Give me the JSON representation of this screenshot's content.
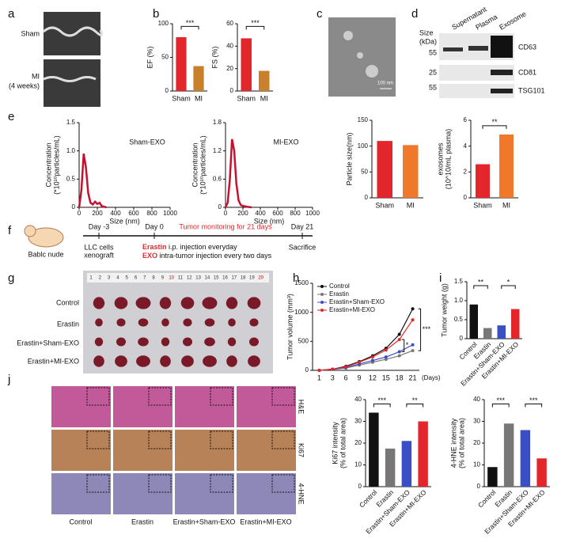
{
  "panels": [
    "a",
    "b",
    "c",
    "d",
    "e",
    "f",
    "g",
    "h",
    "i",
    "j"
  ],
  "echo": {
    "rows": [
      "Sham",
      "MI",
      "(4 weeks)"
    ]
  },
  "tem": {
    "scale": "100 nm"
  },
  "western": {
    "size_label": [
      "Size",
      "(kDa)"
    ],
    "lanes": [
      "Supernatant",
      "Plasma",
      "Exosome"
    ],
    "markers": [
      "55",
      "25",
      "55"
    ],
    "proteins": [
      "CD63",
      "CD81",
      "TSG101"
    ]
  },
  "schematic": {
    "mouse": "Bablc nude",
    "days": [
      "Day -3",
      "Day 0",
      "Day 21"
    ],
    "monitoring": "Tumor monitoring for 21 days",
    "cells": [
      "LLC cells",
      "xenograft"
    ],
    "treatments": [
      {
        "drug": "Erastin",
        "text": "i.p. injection everyday"
      },
      {
        "drug": "EXO",
        "text": "intra-tumor injection every two days"
      }
    ],
    "end": "Sacrifice"
  },
  "tumor_photo": {
    "groups": [
      "Control",
      "Erastin",
      "Erastin+Sham-EXO",
      "Erastin+MI-EXO"
    ],
    "ruler": [
      "1",
      "2",
      "3",
      "4",
      "5",
      "6",
      "7",
      "8",
      "9",
      "10",
      "11",
      "12",
      "13",
      "14",
      "15",
      "16",
      "17",
      "18",
      "19",
      "20"
    ]
  },
  "ihc": {
    "stains": [
      "H&E",
      "Ki67",
      "4-HNE"
    ],
    "groups": [
      "Control",
      "Erastin",
      "Erastin+Sham-EXO",
      "Erastin+MI-EXO"
    ]
  },
  "chart_data": [
    {
      "type": "bar",
      "ylabel": [
        "EF (%)"
      ],
      "categories": [
        "Sham",
        "MI"
      ],
      "values": [
        80,
        37
      ],
      "colors": [
        "#e3262b",
        "#c9802b"
      ],
      "ylim": [
        0,
        100
      ],
      "yticks": [
        0,
        50,
        100
      ],
      "annotations": [
        "***"
      ]
    },
    {
      "type": "bar",
      "ylabel": [
        "FS (%)"
      ],
      "categories": [
        "Sham",
        "MI"
      ],
      "values": [
        47,
        18
      ],
      "colors": [
        "#e3262b",
        "#c9802b"
      ],
      "ylim": [
        0,
        60
      ],
      "yticks": [
        0,
        20,
        40,
        60
      ],
      "annotations": [
        "***"
      ]
    },
    {
      "type": "line",
      "title": "Sham-EXO",
      "ylabel": [
        "Concentration",
        "(*10¹⁰particles/mL)"
      ],
      "xlabel": "Size (nm)",
      "color": "#c8102e",
      "x": [
        0,
        25,
        50,
        75,
        100,
        125,
        150,
        175,
        200,
        225,
        250,
        300
      ],
      "values": [
        0,
        0.3,
        0.95,
        0.7,
        0.25,
        0.08,
        0.05,
        0.1,
        0.06,
        0.08,
        0.02,
        0
      ],
      "xlim": [
        0,
        1000
      ],
      "xticks": [
        0,
        200,
        400,
        600,
        800,
        1000
      ],
      "ylim": [
        0,
        1.5
      ],
      "yticks": [
        0,
        0.5,
        {
          "value": 1,
          "label": "1.0"
        },
        1.5
      ]
    },
    {
      "type": "line",
      "title": "MI-EXO",
      "ylabel": [
        "Concentration",
        "(*10¹⁰particles/mL)"
      ],
      "xlabel": "Size (nm)",
      "color": "#c8102e",
      "x": [
        0,
        25,
        50,
        75,
        100,
        125,
        150,
        175,
        200,
        250,
        300
      ],
      "values": [
        0,
        0.1,
        0.6,
        1.45,
        1.2,
        0.5,
        0.15,
        0.05,
        0.03,
        0.01,
        0
      ],
      "xlim": [
        0,
        1000
      ],
      "xticks": [
        0,
        200,
        400,
        600,
        800,
        1000
      ],
      "ylim": [
        0,
        1.8
      ],
      "yticks": [
        0,
        0.6,
        1.2,
        1.8
      ]
    },
    {
      "type": "bar",
      "ylabel": [
        "Particle size(nm)"
      ],
      "categories": [
        "Sham",
        "MI"
      ],
      "values": [
        110,
        102
      ],
      "colors": [
        "#e3262b",
        "#f0782a"
      ],
      "ylim": [
        0,
        150
      ],
      "yticks": [
        0,
        50,
        100,
        150
      ]
    },
    {
      "type": "bar",
      "ylabel": [
        "exosomes",
        "(10^10/mL plasma)"
      ],
      "categories": [
        "Sham",
        "MI"
      ],
      "values": [
        2.6,
        4.9
      ],
      "colors": [
        "#e3262b",
        "#f0782a"
      ],
      "ylim": [
        0,
        6
      ],
      "yticks": [
        0,
        2,
        4,
        6
      ],
      "annotations": [
        "**"
      ]
    },
    {
      "type": "line",
      "ylabel": [
        "Tumor volume (mm³)"
      ],
      "xlabel": "(Days)",
      "categories": [
        "1",
        "3",
        "6",
        "9",
        "12",
        "15",
        "18",
        "21"
      ],
      "series": [
        {
          "name": "Control",
          "color": "#111111",
          "values": [
            0,
            20,
            70,
            150,
            250,
            380,
            620,
            1060
          ]
        },
        {
          "name": "Erastin",
          "color": "#777777",
          "values": [
            0,
            15,
            40,
            90,
            140,
            190,
            250,
            340
          ]
        },
        {
          "name": "Erastin+Sham-EXO",
          "color": "#3b4fc4",
          "values": [
            0,
            18,
            50,
            110,
            170,
            230,
            320,
            440
          ]
        },
        {
          "name": "Erastin+MI-EXO",
          "color": "#e3262b",
          "values": [
            0,
            20,
            60,
            140,
            230,
            350,
            530,
            870
          ]
        }
      ],
      "ylim": [
        0,
        1500
      ],
      "yticks": [
        0,
        500,
        1000,
        1500
      ],
      "annotations": [
        "***",
        "*"
      ]
    },
    {
      "type": "bar",
      "ylabel": [
        "Tumor weight (g)"
      ],
      "categories": [
        "Control",
        "Erastin",
        "Erastin+Sham-EXO",
        "Erastin+MI-EXO"
      ],
      "values": [
        0.9,
        0.28,
        0.35,
        0.78
      ],
      "colors": [
        "#111111",
        "#777777",
        "#3b4fc4",
        "#e3262b"
      ],
      "ylim": [
        0,
        1.5
      ],
      "yticks": [
        0,
        0.5,
        {
          "value": 1,
          "label": "1.0"
        },
        1.5
      ],
      "annotations": [
        "**",
        "*"
      ]
    },
    {
      "type": "bar",
      "ylabel": [
        "Ki67 intensity",
        "(% of total area)"
      ],
      "categories": [
        "Control",
        "Erastin",
        "Erastin+Sham-EXO",
        "Erastin+MI-EXO"
      ],
      "values": [
        34,
        17.5,
        21,
        30
      ],
      "colors": [
        "#111111",
        "#777777",
        "#3b4fc4",
        "#e3262b"
      ],
      "ylim": [
        0,
        40
      ],
      "yticks": [
        0,
        10,
        20,
        30,
        40
      ],
      "annotations": [
        "***",
        "**"
      ]
    },
    {
      "type": "bar",
      "ylabel": [
        "4-HNE intensity",
        "(% of total area)"
      ],
      "categories": [
        "Control",
        "Erastin",
        "Erastin+Sham-EXO",
        "Erastin+MI-EXO"
      ],
      "values": [
        9,
        29,
        26,
        13
      ],
      "colors": [
        "#111111",
        "#777777",
        "#3b4fc4",
        "#e3262b"
      ],
      "ylim": [
        0,
        40
      ],
      "yticks": [
        0,
        10,
        20,
        30,
        40
      ],
      "annotations": [
        "***",
        "***"
      ]
    }
  ]
}
